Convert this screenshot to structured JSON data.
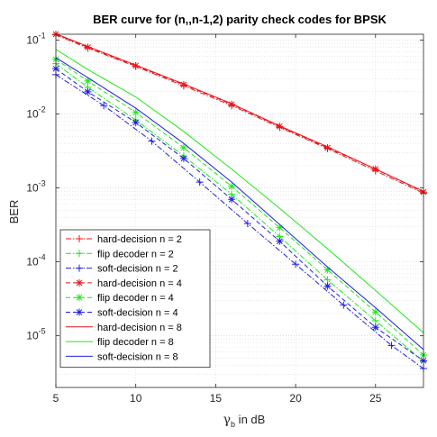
{
  "chart_data": {
    "type": "line",
    "title": "BER curve for (n,,n-1,2) parity check codes for BPSK",
    "xlabel": "γ",
    "xlabel_sub": "b",
    "xlabel_suffix": " in dB",
    "ylabel": "BER",
    "xlim": [
      5,
      28
    ],
    "ylim": [
      2e-06,
      0.12
    ],
    "yscale": "log",
    "grid": true,
    "legend_position": "bottom-left",
    "x_ticks": [
      5,
      10,
      15,
      20,
      25
    ],
    "x_tick_labels": [
      "5",
      "10",
      "15",
      "20",
      "25"
    ],
    "y_ticks": [
      0.1,
      0.01,
      0.001,
      0.0001,
      1e-05
    ],
    "y_tick_labels": [
      {
        "base": "10",
        "exp": "-1"
      },
      {
        "base": "10",
        "exp": "-2"
      },
      {
        "base": "10",
        "exp": "-3"
      },
      {
        "base": "10",
        "exp": "-4"
      },
      {
        "base": "10",
        "exp": "-5"
      }
    ],
    "series": [
      {
        "name": "hard-decision n = 2",
        "color": "#e8141b",
        "dash": "dashdot",
        "marker": "plus",
        "x": [
          5,
          7,
          10,
          13,
          16,
          19,
          22,
          25,
          28
        ],
        "y": [
          0.118,
          0.078,
          0.044,
          0.024,
          0.013,
          0.0066,
          0.0034,
          0.0017,
          0.00085
        ]
      },
      {
        "name": "flip decoder n = 2",
        "color": "#1fe81b",
        "dash": "dashdot",
        "marker": "plus",
        "x": [
          5,
          7,
          10,
          13,
          16,
          19,
          22,
          25,
          28
        ],
        "y": [
          0.048,
          0.023,
          0.0083,
          0.0027,
          0.00082,
          0.00022,
          5.7e-05,
          1.6e-05,
          4.5e-06
        ]
      },
      {
        "name": "soft-decision n = 2",
        "color": "#1f1fe8",
        "dash": "dashdot",
        "marker": "plus",
        "x": [
          5,
          8,
          11,
          14,
          17,
          20,
          23,
          26,
          28
        ],
        "y": [
          0.034,
          0.013,
          0.0043,
          0.0012,
          0.00033,
          9.3e-05,
          2.6e-05,
          7.4e-06,
          3.6e-06
        ]
      },
      {
        "name": "hard-decision n = 4",
        "color": "#e8141b",
        "dash": "dashed",
        "marker": "asterisk",
        "x": [
          5,
          7,
          10,
          13,
          16,
          19,
          22,
          25,
          28
        ],
        "y": [
          0.12,
          0.08,
          0.045,
          0.025,
          0.0135,
          0.0068,
          0.0035,
          0.0018,
          0.00088
        ]
      },
      {
        "name": "flip decoder n = 4",
        "color": "#1fe81b",
        "dash": "dashed",
        "marker": "asterisk",
        "x": [
          5,
          7,
          10,
          13,
          16,
          19,
          22,
          25,
          28
        ],
        "y": [
          0.055,
          0.028,
          0.0105,
          0.0035,
          0.00105,
          0.00029,
          7.8e-05,
          2.1e-05,
          5.5e-06
        ]
      },
      {
        "name": "soft-decision n = 4",
        "color": "#1f1fe8",
        "dash": "dashed",
        "marker": "asterisk",
        "x": [
          5,
          7,
          10,
          13,
          16,
          19,
          22,
          25,
          28
        ],
        "y": [
          0.041,
          0.02,
          0.0077,
          0.0025,
          0.0007,
          0.00019,
          4.7e-05,
          1.3e-05,
          4.6e-06
        ]
      },
      {
        "name": "hard-decision n = 8",
        "color": "#e8141b",
        "dash": "solid",
        "marker": "none",
        "x": [
          5,
          7,
          10,
          13,
          16,
          19,
          22,
          25,
          28
        ],
        "y": [
          0.122,
          0.082,
          0.046,
          0.0255,
          0.0138,
          0.0069,
          0.0036,
          0.0018,
          0.0009
        ]
      },
      {
        "name": "flip decoder n = 8",
        "color": "#1fe81b",
        "dash": "solid",
        "marker": "none",
        "x": [
          5,
          7,
          10,
          13,
          16,
          19,
          22,
          25,
          28
        ],
        "y": [
          0.075,
          0.04,
          0.017,
          0.0058,
          0.0018,
          0.00053,
          0.00015,
          4.1e-05,
          1.1e-05
        ]
      },
      {
        "name": "soft-decision n = 8",
        "color": "#1f1fe8",
        "dash": "solid",
        "marker": "none",
        "x": [
          5,
          7,
          10,
          13,
          16,
          19,
          22,
          25,
          28
        ],
        "y": [
          0.058,
          0.031,
          0.012,
          0.004,
          0.0012,
          0.00032,
          8.5e-05,
          2.4e-05,
          6.5e-06
        ]
      }
    ]
  }
}
